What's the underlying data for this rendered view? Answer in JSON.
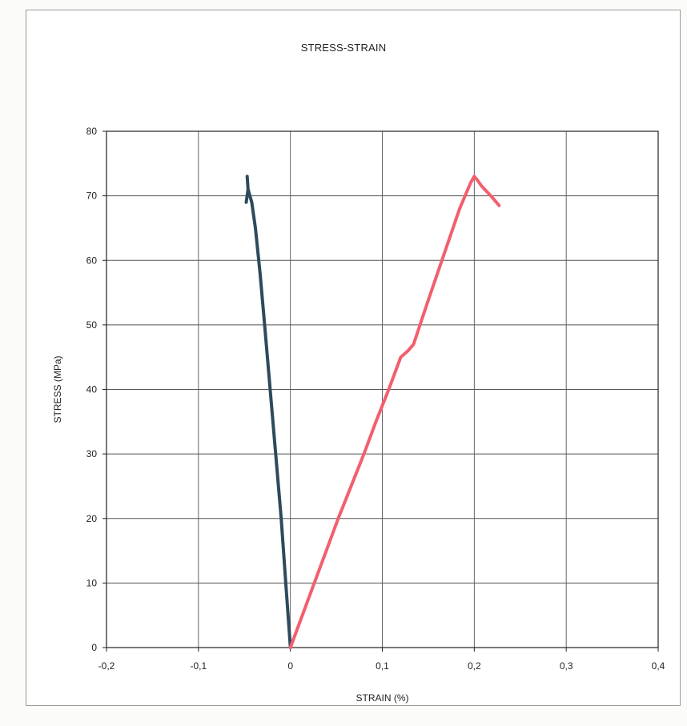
{
  "chart_data": {
    "type": "line",
    "title": "STRESS-STRAIN",
    "xlabel": "STRAIN (%)",
    "ylabel": "STRESS (MPa)",
    "xlim": [
      -0.2,
      0.4
    ],
    "ylim": [
      0,
      80
    ],
    "x_ticks": [
      "-0,2",
      "-0,1",
      "0",
      "0,1",
      "0,2",
      "0,3",
      "0,4"
    ],
    "y_ticks": [
      "0",
      "10",
      "20",
      "30",
      "40",
      "50",
      "60",
      "70",
      "80"
    ],
    "grid": true,
    "legend": "none",
    "series": [
      {
        "color": "#2e4a5c",
        "x": [
          0.0,
          -0.005,
          -0.01,
          -0.016,
          -0.022,
          -0.028,
          -0.033,
          -0.038,
          -0.042,
          -0.046,
          -0.047,
          -0.046,
          -0.048
        ],
        "y": [
          0,
          10,
          20,
          30,
          40,
          50,
          58,
          65,
          69,
          71,
          73,
          71,
          69
        ]
      },
      {
        "color": "#f25f6e",
        "x": [
          0.0,
          0.013,
          0.026,
          0.039,
          0.052,
          0.066,
          0.08,
          0.093,
          0.107,
          0.12,
          0.128,
          0.134,
          0.148,
          0.16,
          0.172,
          0.184,
          0.196,
          0.2,
          0.203,
          0.208,
          0.218,
          0.227
        ],
        "y": [
          0,
          5,
          10,
          15,
          20,
          25,
          30,
          35,
          40,
          45,
          46,
          47,
          53,
          58,
          63,
          68,
          72,
          73,
          72.5,
          71.5,
          70,
          68.5
        ]
      }
    ]
  }
}
